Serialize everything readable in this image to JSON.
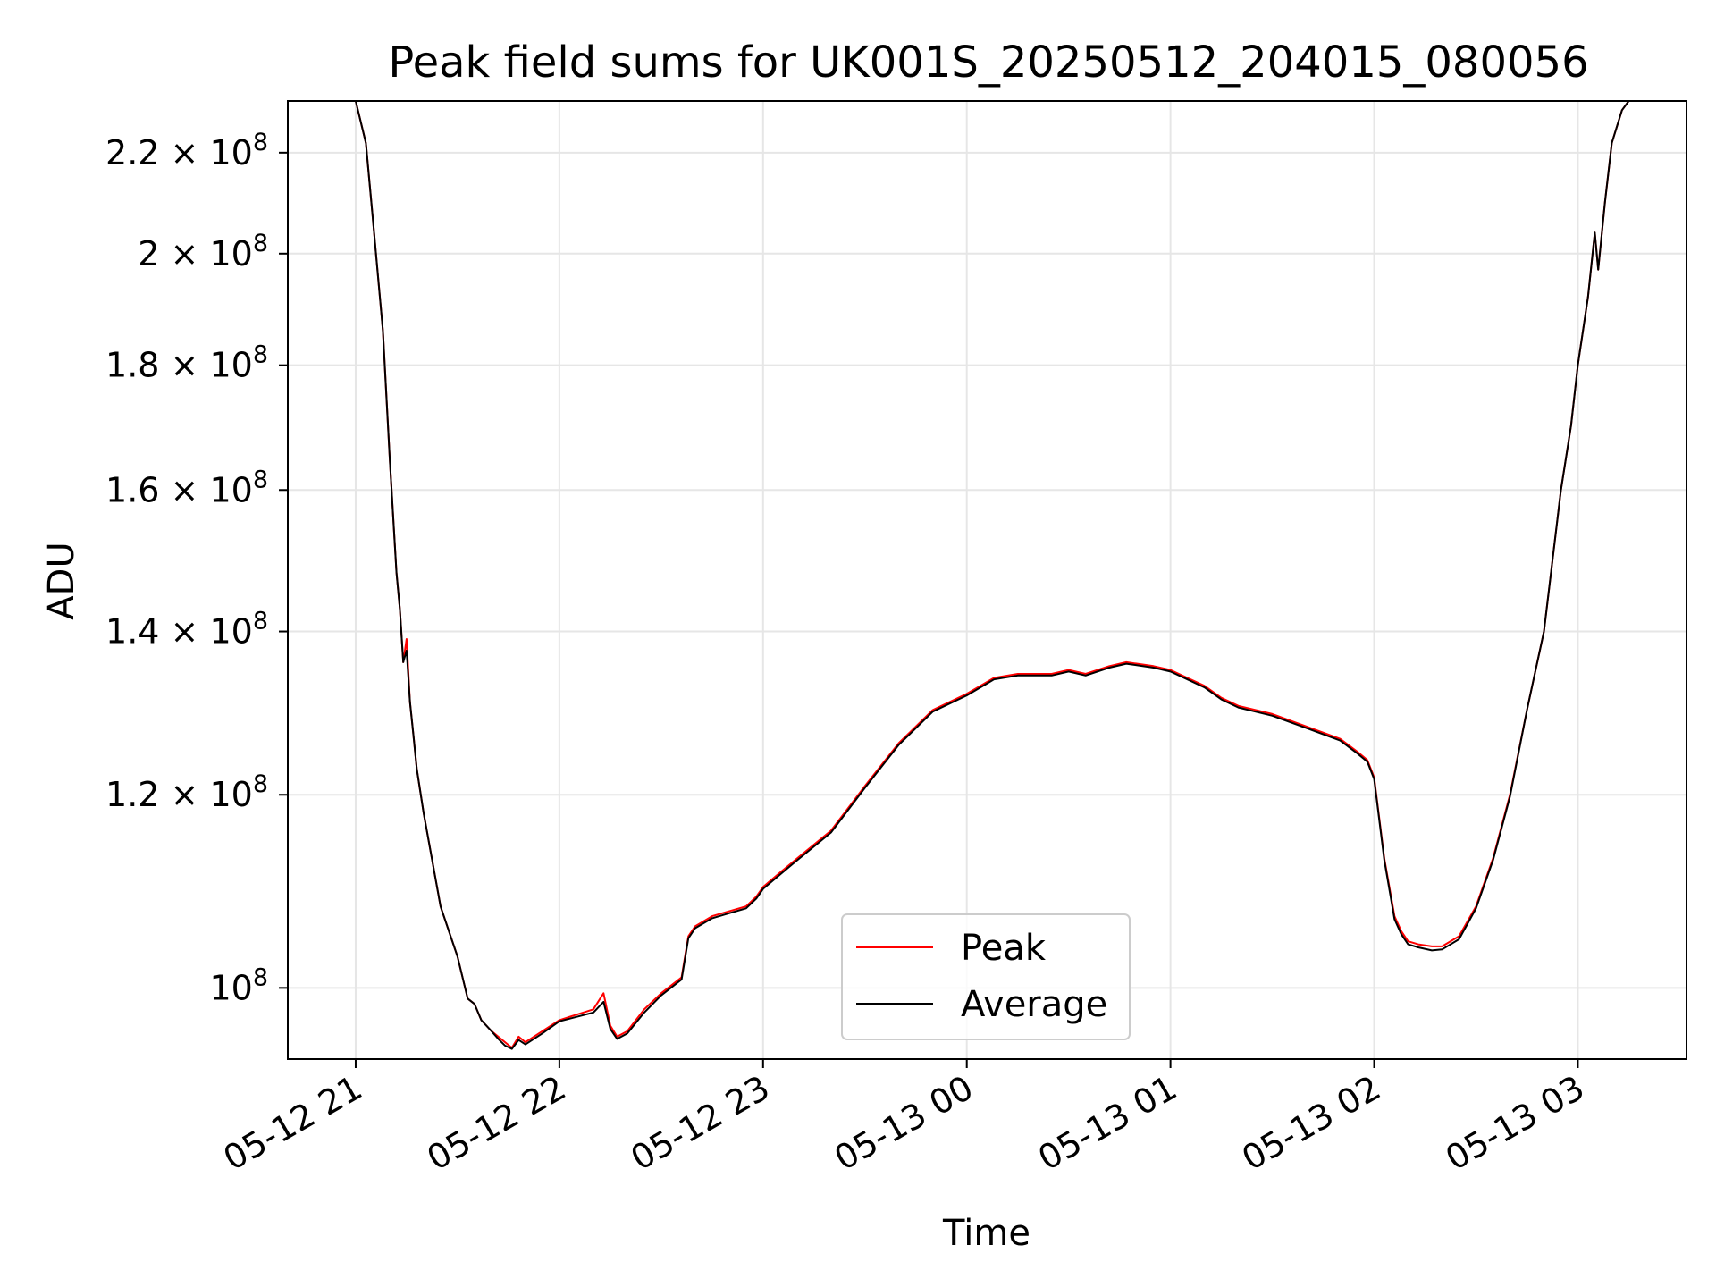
{
  "chart_data": {
    "type": "line",
    "title": "Peak field sums for UK001S_20250512_204015_080056",
    "xlabel": "Time",
    "ylabel": "ADU",
    "y_scale": "log",
    "grid": true,
    "legend_position": "lower center",
    "xlim": [
      "2025-05-12 20:40",
      "2025-05-13 03:32"
    ],
    "ylim": [
      93500000,
      231000000
    ],
    "x_ticks": [
      {
        "value": "2025-05-12 21:00",
        "label": "05-12 21"
      },
      {
        "value": "2025-05-12 22:00",
        "label": "05-12 22"
      },
      {
        "value": "2025-05-12 23:00",
        "label": "05-12 23"
      },
      {
        "value": "2025-05-13 00:00",
        "label": "05-13 00"
      },
      {
        "value": "2025-05-13 01:00",
        "label": "05-13 01"
      },
      {
        "value": "2025-05-13 02:00",
        "label": "05-13 02"
      },
      {
        "value": "2025-05-13 03:00",
        "label": "05-13 03"
      }
    ],
    "y_ticks": [
      {
        "value": 100000000,
        "mantissa": "",
        "exponent": "8"
      },
      {
        "value": 120000000,
        "mantissa": "1.2",
        "exponent": "8"
      },
      {
        "value": 140000000,
        "mantissa": "1.4",
        "exponent": "8"
      },
      {
        "value": 160000000,
        "mantissa": "1.6",
        "exponent": "8"
      },
      {
        "value": 180000000,
        "mantissa": "1.8",
        "exponent": "8"
      },
      {
        "value": 200000000,
        "mantissa": "2",
        "exponent": "8"
      },
      {
        "value": 220000000,
        "mantissa": "2.2",
        "exponent": "8"
      }
    ],
    "series": [
      {
        "name": "Peak",
        "color": "#ff0000",
        "x": [
          "2025-05-12 20:40",
          "2025-05-12 20:50",
          "2025-05-12 20:55",
          "2025-05-12 21:00",
          "2025-05-12 21:03",
          "2025-05-12 21:05",
          "2025-05-12 21:08",
          "2025-05-12 21:10",
          "2025-05-12 21:12",
          "2025-05-12 21:13",
          "2025-05-12 21:14",
          "2025-05-12 21:15",
          "2025-05-12 21:16",
          "2025-05-12 21:17",
          "2025-05-12 21:18",
          "2025-05-12 21:20",
          "2025-05-12 21:25",
          "2025-05-12 21:30",
          "2025-05-12 21:33",
          "2025-05-12 21:35",
          "2025-05-12 21:37",
          "2025-05-12 21:40",
          "2025-05-12 21:42",
          "2025-05-12 21:44",
          "2025-05-12 21:46",
          "2025-05-12 21:48",
          "2025-05-12 21:50",
          "2025-05-12 21:55",
          "2025-05-12 22:00",
          "2025-05-12 22:05",
          "2025-05-12 22:10",
          "2025-05-12 22:13",
          "2025-05-12 22:15",
          "2025-05-12 22:17",
          "2025-05-12 22:20",
          "2025-05-12 22:25",
          "2025-05-12 22:30",
          "2025-05-12 22:36",
          "2025-05-12 22:38",
          "2025-05-12 22:40",
          "2025-05-12 22:45",
          "2025-05-12 22:50",
          "2025-05-12 22:55",
          "2025-05-12 22:58",
          "2025-05-12 23:00",
          "2025-05-12 23:05",
          "2025-05-12 23:10",
          "2025-05-12 23:20",
          "2025-05-12 23:30",
          "2025-05-12 23:40",
          "2025-05-12 23:50",
          "2025-05-13 00:00",
          "2025-05-13 00:08",
          "2025-05-13 00:15",
          "2025-05-13 00:25",
          "2025-05-13 00:30",
          "2025-05-13 00:35",
          "2025-05-13 00:42",
          "2025-05-13 00:47",
          "2025-05-13 00:55",
          "2025-05-13 01:00",
          "2025-05-13 01:05",
          "2025-05-13 01:10",
          "2025-05-13 01:15",
          "2025-05-13 01:20",
          "2025-05-13 01:30",
          "2025-05-13 01:40",
          "2025-05-13 01:50",
          "2025-05-13 01:55",
          "2025-05-13 01:58",
          "2025-05-13 02:00",
          "2025-05-13 02:03",
          "2025-05-13 02:06",
          "2025-05-13 02:08",
          "2025-05-13 02:10",
          "2025-05-13 02:13",
          "2025-05-13 02:17",
          "2025-05-13 02:20",
          "2025-05-13 02:25",
          "2025-05-13 02:30",
          "2025-05-13 02:35",
          "2025-05-13 02:40",
          "2025-05-13 02:45",
          "2025-05-13 02:50",
          "2025-05-13 02:55",
          "2025-05-13 02:58",
          "2025-05-13 03:00",
          "2025-05-13 03:03",
          "2025-05-13 03:05",
          "2025-05-13 03:06",
          "2025-05-13 03:08",
          "2025-05-13 03:10",
          "2025-05-13 03:13",
          "2025-05-13 03:15",
          "2025-05-13 03:32"
        ],
        "values": [
          231000000,
          231000000,
          231000000,
          231000000,
          222000000,
          207000000,
          186000000,
          165000000,
          148000000,
          143000000,
          136000000,
          139000000,
          131000000,
          127000000,
          123000000,
          118000000,
          108000000,
          103000000,
          99000000,
          98500000,
          97000000,
          96000000,
          95500000,
          95000000,
          94500000,
          95500000,
          95000000,
          96000000,
          97000000,
          97500000,
          98000000,
          99500000,
          96500000,
          95500000,
          96000000,
          98000000,
          99500000,
          101000000,
          105000000,
          106000000,
          107000000,
          107500000,
          108000000,
          109000000,
          110000000,
          111500000,
          113000000,
          116000000,
          121000000,
          126000000,
          130000000,
          132000000,
          134000000,
          134500000,
          134500000,
          135000000,
          134500000,
          135500000,
          136000000,
          135500000,
          135000000,
          134000000,
          133000000,
          131500000,
          130500000,
          129500000,
          128000000,
          126500000,
          125000000,
          124000000,
          122000000,
          113000000,
          107000000,
          105500000,
          104500000,
          104200000,
          104000000,
          104000000,
          105000000,
          108000000,
          113000000,
          120000000,
          130000000,
          140000000,
          160000000,
          170000000,
          180000000,
          192000000,
          204000000,
          197000000,
          210000000,
          222000000,
          229000000,
          231000000,
          231000000
        ]
      },
      {
        "name": "Average",
        "color": "#000000",
        "x": [
          "2025-05-12 20:40",
          "2025-05-12 20:50",
          "2025-05-12 20:55",
          "2025-05-12 21:00",
          "2025-05-12 21:03",
          "2025-05-12 21:05",
          "2025-05-12 21:08",
          "2025-05-12 21:10",
          "2025-05-12 21:12",
          "2025-05-12 21:13",
          "2025-05-12 21:14",
          "2025-05-12 21:15",
          "2025-05-12 21:16",
          "2025-05-12 21:17",
          "2025-05-12 21:18",
          "2025-05-12 21:20",
          "2025-05-12 21:25",
          "2025-05-12 21:30",
          "2025-05-12 21:33",
          "2025-05-12 21:35",
          "2025-05-12 21:37",
          "2025-05-12 21:40",
          "2025-05-12 21:42",
          "2025-05-12 21:44",
          "2025-05-12 21:46",
          "2025-05-12 21:48",
          "2025-05-12 21:50",
          "2025-05-12 21:55",
          "2025-05-12 22:00",
          "2025-05-12 22:05",
          "2025-05-12 22:10",
          "2025-05-12 22:13",
          "2025-05-12 22:15",
          "2025-05-12 22:17",
          "2025-05-12 22:20",
          "2025-05-12 22:25",
          "2025-05-12 22:30",
          "2025-05-12 22:36",
          "2025-05-12 22:38",
          "2025-05-12 22:40",
          "2025-05-12 22:45",
          "2025-05-12 22:50",
          "2025-05-12 22:55",
          "2025-05-12 22:58",
          "2025-05-12 23:00",
          "2025-05-12 23:05",
          "2025-05-12 23:10",
          "2025-05-12 23:20",
          "2025-05-12 23:30",
          "2025-05-12 23:40",
          "2025-05-12 23:50",
          "2025-05-13 00:00",
          "2025-05-13 00:08",
          "2025-05-13 00:15",
          "2025-05-13 00:25",
          "2025-05-13 00:30",
          "2025-05-13 00:35",
          "2025-05-13 00:42",
          "2025-05-13 00:47",
          "2025-05-13 00:55",
          "2025-05-13 01:00",
          "2025-05-13 01:05",
          "2025-05-13 01:10",
          "2025-05-13 01:15",
          "2025-05-13 01:20",
          "2025-05-13 01:30",
          "2025-05-13 01:40",
          "2025-05-13 01:50",
          "2025-05-13 01:55",
          "2025-05-13 01:58",
          "2025-05-13 02:00",
          "2025-05-13 02:03",
          "2025-05-13 02:06",
          "2025-05-13 02:08",
          "2025-05-13 02:10",
          "2025-05-13 02:13",
          "2025-05-13 02:17",
          "2025-05-13 02:20",
          "2025-05-13 02:25",
          "2025-05-13 02:30",
          "2025-05-13 02:35",
          "2025-05-13 02:40",
          "2025-05-13 02:45",
          "2025-05-13 02:50",
          "2025-05-13 02:55",
          "2025-05-13 02:58",
          "2025-05-13 03:00",
          "2025-05-13 03:03",
          "2025-05-13 03:05",
          "2025-05-13 03:06",
          "2025-05-13 03:08",
          "2025-05-13 03:10",
          "2025-05-13 03:13",
          "2025-05-13 03:15",
          "2025-05-13 03:32"
        ],
        "values": [
          231000000,
          231000000,
          231000000,
          231000000,
          222000000,
          207000000,
          186000000,
          165000000,
          148000000,
          143000000,
          136000000,
          137500000,
          131000000,
          127000000,
          123000000,
          118000000,
          108000000,
          103000000,
          99000000,
          98500000,
          97000000,
          96000000,
          95300000,
          94700000,
          94400000,
          95200000,
          94800000,
          95800000,
          96900000,
          97300000,
          97700000,
          98700000,
          96200000,
          95300000,
          95800000,
          97700000,
          99300000,
          100800000,
          104800000,
          105800000,
          106800000,
          107300000,
          107800000,
          108800000,
          109800000,
          111300000,
          112800000,
          115800000,
          120800000,
          125800000,
          129800000,
          131800000,
          133800000,
          134300000,
          134300000,
          134800000,
          134300000,
          135300000,
          135800000,
          135300000,
          134800000,
          133800000,
          132800000,
          131300000,
          130300000,
          129300000,
          127800000,
          126300000,
          124800000,
          123800000,
          121800000,
          112800000,
          106700000,
          105200000,
          104200000,
          103900000,
          103600000,
          103700000,
          104700000,
          107800000,
          112800000,
          119800000,
          130000000,
          140000000,
          160000000,
          170000000,
          180000000,
          192000000,
          204000000,
          197000000,
          210000000,
          222000000,
          229000000,
          231000000,
          231000000
        ]
      }
    ]
  }
}
